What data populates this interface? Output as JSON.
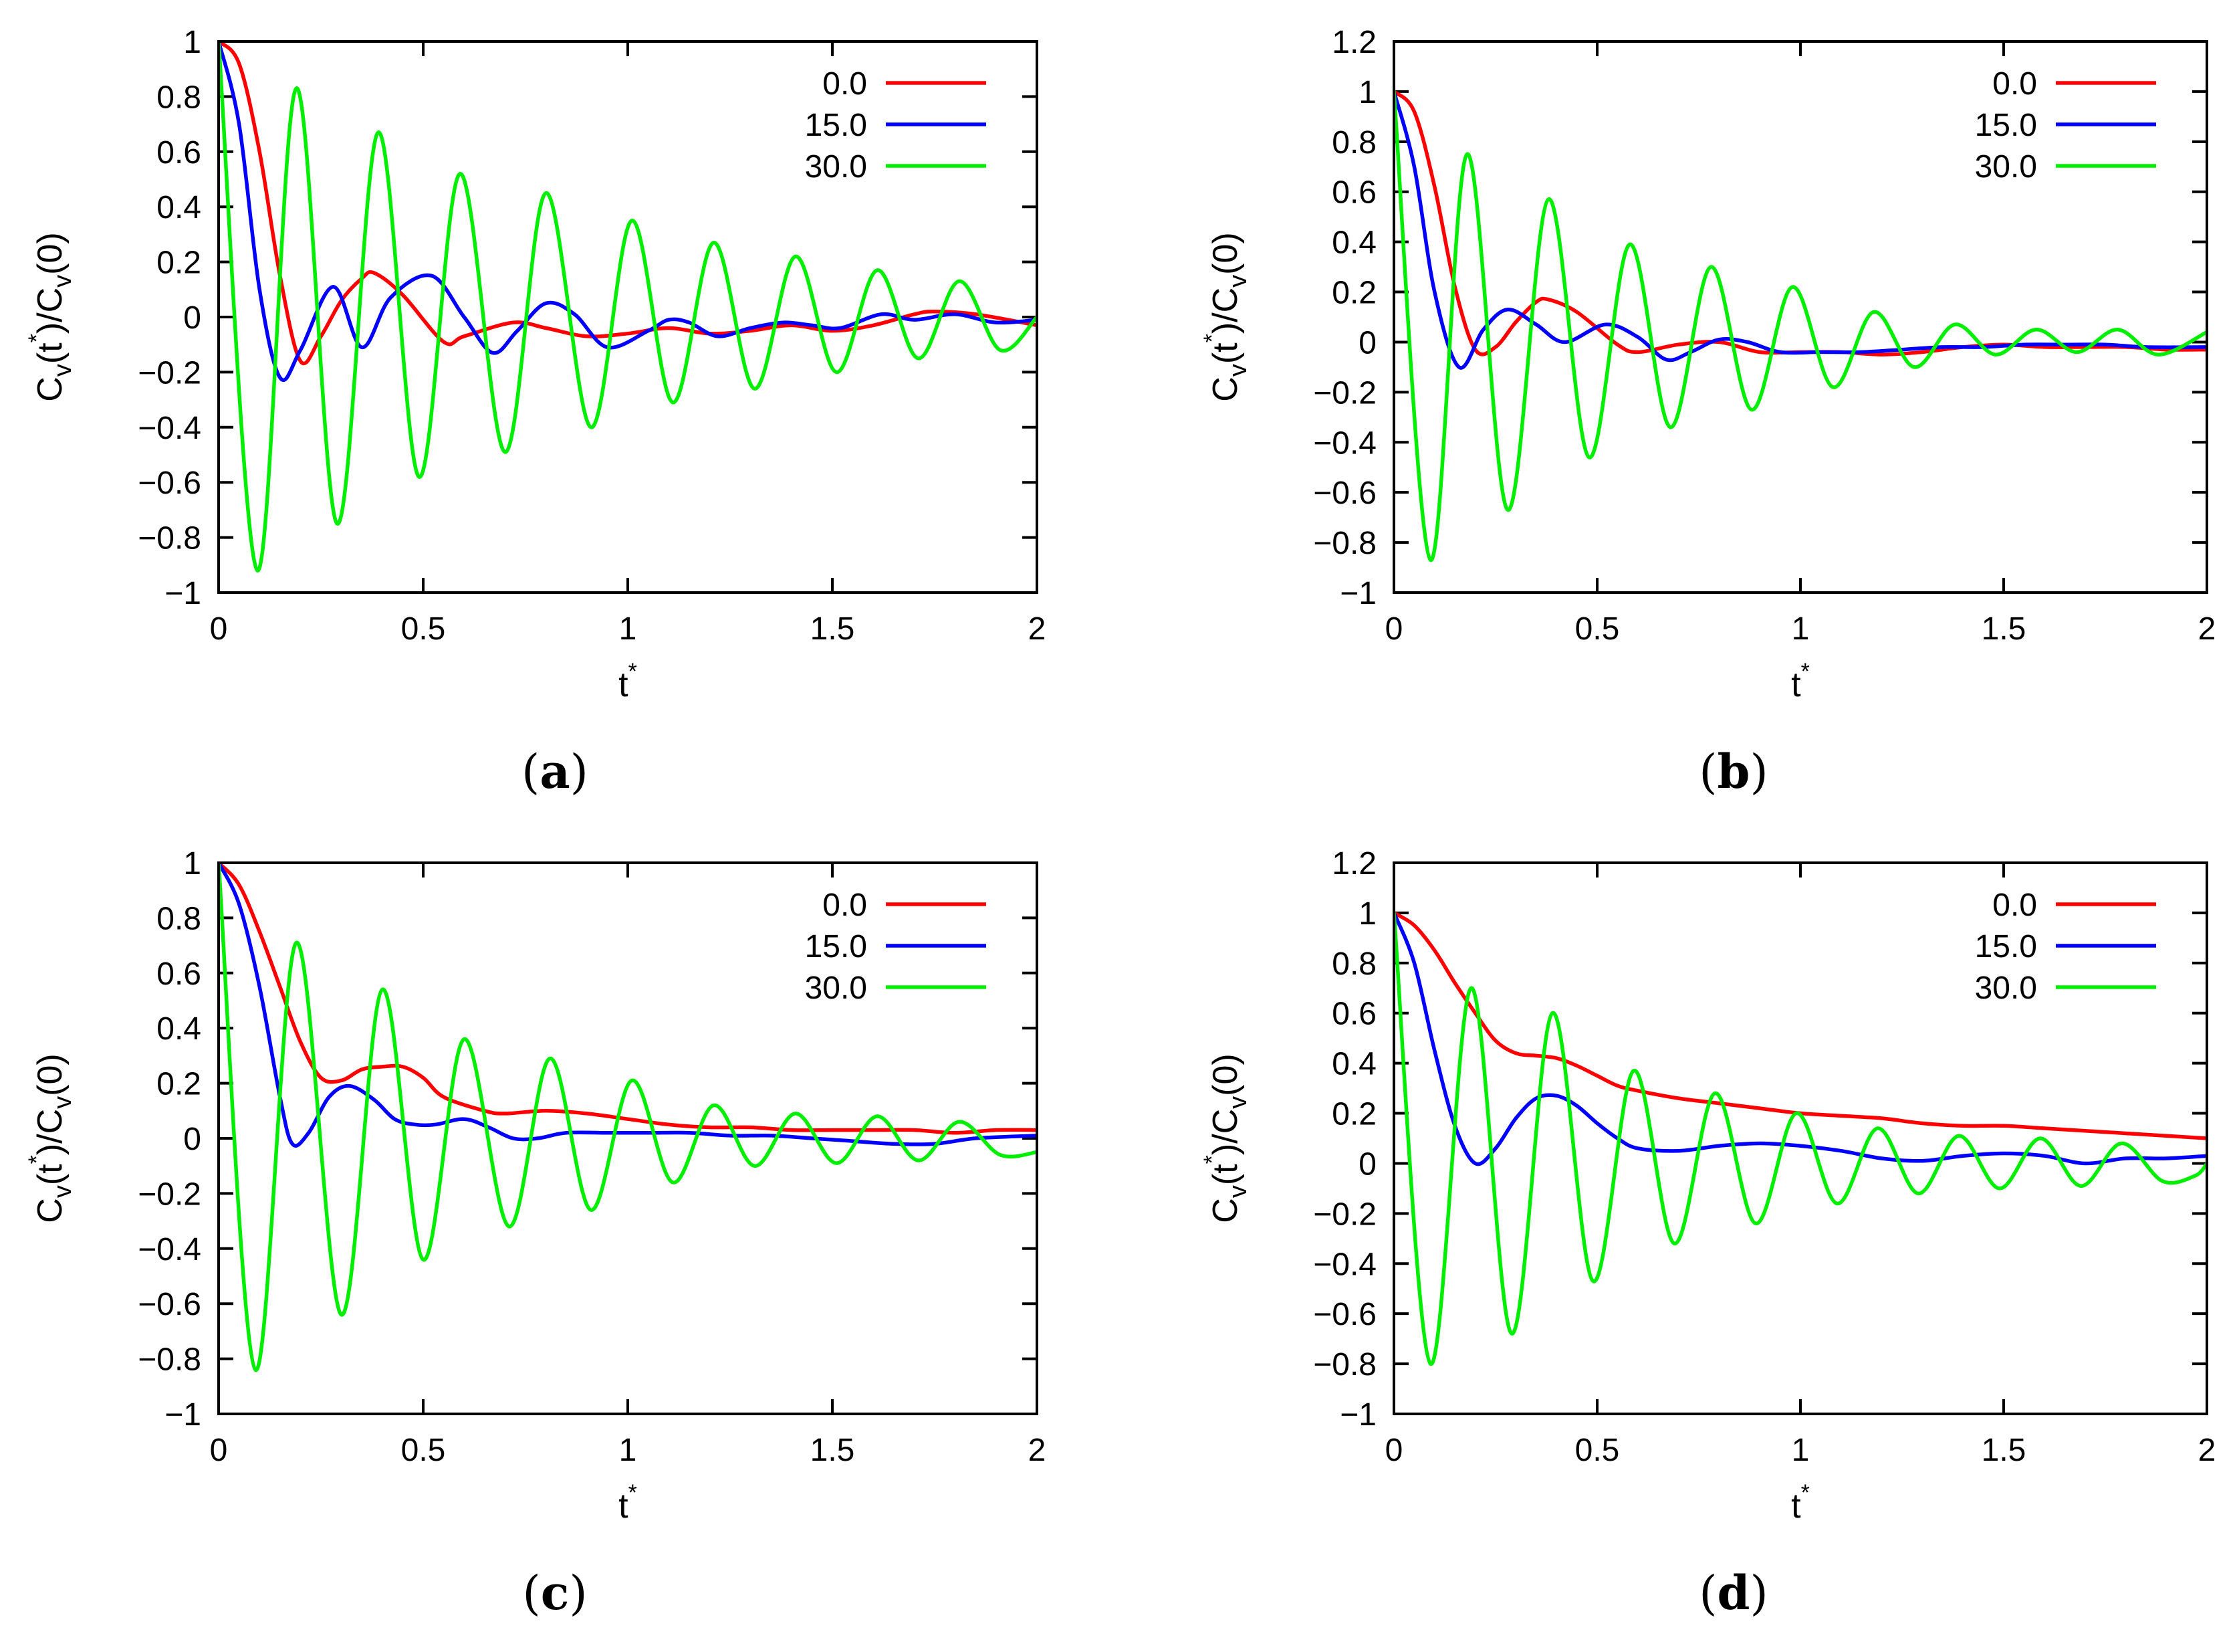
{
  "figure": {
    "captions": [
      "(a)",
      "(b)",
      "(c)",
      "(d)"
    ]
  },
  "chart_data": [
    {
      "id": "a",
      "type": "line",
      "caption": "(a)",
      "xlabel": "t*",
      "ylabel": "Cv(t*)/Cv(0)",
      "xlim": [
        0,
        2
      ],
      "ylim": [
        -1,
        1
      ],
      "xticks": [
        "0",
        "0.5",
        "1",
        "1.5",
        "2"
      ],
      "yticks": [
        "1",
        "0.8",
        "0.6",
        "0.4",
        "0.2",
        "0",
        "−0.2",
        "−0.4",
        "−0.6",
        "−0.8",
        "−1"
      ],
      "legend": "top-right",
      "series": [
        {
          "name": "0.0",
          "color": "#ff0000",
          "x": [
            0,
            0.05,
            0.1,
            0.15,
            0.2,
            0.25,
            0.3,
            0.35,
            0.38,
            0.45,
            0.55,
            0.6,
            0.72,
            0.8,
            0.9,
            1.0,
            1.1,
            1.2,
            1.3,
            1.4,
            1.5,
            1.6,
            1.7,
            1.75,
            1.85,
            2.0
          ],
          "values": [
            1,
            0.92,
            0.6,
            0.15,
            -0.16,
            -0.07,
            0.06,
            0.14,
            0.16,
            0.08,
            -0.09,
            -0.07,
            -0.02,
            -0.04,
            -0.07,
            -0.06,
            -0.04,
            -0.06,
            -0.05,
            -0.03,
            -0.05,
            -0.03,
            0.01,
            0.02,
            0.01,
            -0.03
          ]
        },
        {
          "name": "15.0",
          "color": "#0000ff",
          "x": [
            0,
            0.05,
            0.1,
            0.15,
            0.2,
            0.28,
            0.35,
            0.42,
            0.52,
            0.6,
            0.67,
            0.73,
            0.8,
            0.87,
            0.95,
            1.05,
            1.1,
            1.15,
            1.22,
            1.3,
            1.38,
            1.45,
            1.52,
            1.62,
            1.7,
            1.8,
            1.9,
            2.0
          ],
          "values": [
            1,
            0.7,
            0.1,
            -0.22,
            -0.12,
            0.11,
            -0.11,
            0.07,
            0.15,
            0.0,
            -0.13,
            -0.05,
            0.05,
            0.01,
            -0.11,
            -0.05,
            -0.01,
            -0.02,
            -0.07,
            -0.04,
            -0.02,
            -0.03,
            -0.04,
            0.01,
            -0.01,
            0.01,
            -0.02,
            -0.01
          ]
        },
        {
          "name": "30.0",
          "color": "#00ee00",
          "x": [
            0,
            0.095,
            0.19,
            0.29,
            0.39,
            0.49,
            0.59,
            0.7,
            0.8,
            0.91,
            1.01,
            1.11,
            1.21,
            1.31,
            1.41,
            1.51,
            1.61,
            1.71,
            1.81,
            1.91,
            2.0
          ],
          "values": [
            1,
            -0.92,
            0.83,
            -0.75,
            0.67,
            -0.58,
            0.52,
            -0.49,
            0.45,
            -0.4,
            0.35,
            -0.31,
            0.27,
            -0.26,
            0.22,
            -0.2,
            0.17,
            -0.15,
            0.13,
            -0.12,
            0.0
          ]
        }
      ]
    },
    {
      "id": "b",
      "type": "line",
      "caption": "(b)",
      "xlabel": "t*",
      "ylabel": "Cv(t*)/Cv(0)",
      "xlim": [
        0,
        2
      ],
      "ylim": [
        -1,
        1.2
      ],
      "xticks": [
        "0",
        "0.5",
        "1",
        "1.5",
        "2"
      ],
      "yticks": [
        "1.2",
        "1",
        "0.8",
        "0.6",
        "0.4",
        "0.2",
        "0",
        "−0.2",
        "−0.4",
        "−0.6",
        "−0.8",
        "−1"
      ],
      "legend": "top-right",
      "series": [
        {
          "name": "0.0",
          "color": "#ff0000",
          "x": [
            0,
            0.05,
            0.1,
            0.15,
            0.2,
            0.25,
            0.3,
            0.35,
            0.38,
            0.45,
            0.55,
            0.6,
            0.7,
            0.8,
            0.9,
            1.0,
            1.1,
            1.2,
            1.3,
            1.4,
            1.5,
            1.6,
            1.7,
            1.8,
            1.9,
            2.0
          ],
          "values": [
            1,
            0.92,
            0.62,
            0.22,
            -0.03,
            -0.02,
            0.08,
            0.16,
            0.17,
            0.12,
            -0.01,
            -0.04,
            -0.01,
            0.0,
            -0.04,
            -0.04,
            -0.04,
            -0.05,
            -0.04,
            -0.02,
            -0.01,
            -0.02,
            -0.02,
            -0.02,
            -0.03,
            -0.03
          ]
        },
        {
          "name": "15.0",
          "color": "#0000ff",
          "x": [
            0,
            0.05,
            0.1,
            0.16,
            0.22,
            0.28,
            0.35,
            0.42,
            0.52,
            0.6,
            0.67,
            0.73,
            0.8,
            0.87,
            0.95,
            1.05,
            1.15,
            1.25,
            1.35,
            1.45,
            1.55,
            1.65,
            1.75,
            1.85,
            2.0
          ],
          "values": [
            1,
            0.7,
            0.2,
            -0.1,
            0.05,
            0.13,
            0.07,
            0.0,
            0.07,
            0.02,
            -0.07,
            -0.04,
            0.01,
            0.0,
            -0.04,
            -0.04,
            -0.04,
            -0.03,
            -0.02,
            -0.02,
            -0.01,
            -0.01,
            -0.01,
            -0.02,
            -0.02
          ]
        },
        {
          "name": "30.0",
          "color": "#00ee00",
          "x": [
            0,
            0.09,
            0.18,
            0.28,
            0.38,
            0.48,
            0.58,
            0.68,
            0.78,
            0.88,
            0.98,
            1.08,
            1.18,
            1.28,
            1.38,
            1.48,
            1.58,
            1.68,
            1.78,
            1.88,
            2.0
          ],
          "values": [
            1,
            -0.87,
            0.75,
            -0.67,
            0.57,
            -0.46,
            0.39,
            -0.34,
            0.3,
            -0.27,
            0.22,
            -0.18,
            0.12,
            -0.1,
            0.07,
            -0.05,
            0.05,
            -0.04,
            0.05,
            -0.05,
            0.04
          ]
        }
      ]
    },
    {
      "id": "c",
      "type": "line",
      "caption": "(c)",
      "xlabel": "t*",
      "ylabel": "Cv(t*)/Cv(0)",
      "xlim": [
        0,
        2
      ],
      "ylim": [
        -1,
        1
      ],
      "xticks": [
        "0",
        "0.5",
        "1",
        "1.5",
        "2"
      ],
      "yticks": [
        "1",
        "0.8",
        "0.6",
        "0.4",
        "0.2",
        "0",
        "−0.2",
        "−0.4",
        "−0.6",
        "−0.8",
        "−1"
      ],
      "legend": "top-right",
      "series": [
        {
          "name": "0.0",
          "color": "#ff0000",
          "x": [
            0,
            0.05,
            0.1,
            0.15,
            0.2,
            0.25,
            0.3,
            0.35,
            0.4,
            0.45,
            0.5,
            0.55,
            0.65,
            0.7,
            0.8,
            0.9,
            1.0,
            1.1,
            1.2,
            1.3,
            1.4,
            1.5,
            1.6,
            1.7,
            1.8,
            1.9,
            2.0
          ],
          "values": [
            1,
            0.92,
            0.75,
            0.55,
            0.35,
            0.22,
            0.21,
            0.25,
            0.26,
            0.26,
            0.22,
            0.15,
            0.1,
            0.09,
            0.1,
            0.09,
            0.07,
            0.05,
            0.04,
            0.04,
            0.03,
            0.03,
            0.03,
            0.03,
            0.02,
            0.03,
            0.03
          ]
        },
        {
          "name": "15.0",
          "color": "#0000ff",
          "x": [
            0,
            0.05,
            0.1,
            0.15,
            0.18,
            0.22,
            0.27,
            0.32,
            0.38,
            0.43,
            0.48,
            0.53,
            0.6,
            0.66,
            0.72,
            0.78,
            0.85,
            0.95,
            1.05,
            1.15,
            1.25,
            1.35,
            1.45,
            1.55,
            1.65,
            1.75,
            1.85,
            2.0
          ],
          "values": [
            1,
            0.85,
            0.55,
            0.15,
            -0.02,
            0.02,
            0.15,
            0.19,
            0.14,
            0.07,
            0.05,
            0.05,
            0.07,
            0.04,
            0.0,
            0.0,
            0.02,
            0.02,
            0.02,
            0.02,
            0.01,
            0.01,
            0.0,
            -0.01,
            -0.02,
            -0.02,
            0.0,
            0.01
          ]
        },
        {
          "name": "30.0",
          "color": "#00ee00",
          "x": [
            0,
            0.09,
            0.19,
            0.3,
            0.4,
            0.5,
            0.6,
            0.71,
            0.81,
            0.91,
            1.01,
            1.11,
            1.21,
            1.31,
            1.41,
            1.51,
            1.61,
            1.71,
            1.81,
            1.91,
            2.0
          ],
          "values": [
            1,
            -0.84,
            0.71,
            -0.64,
            0.54,
            -0.44,
            0.36,
            -0.32,
            0.29,
            -0.26,
            0.21,
            -0.16,
            0.12,
            -0.1,
            0.09,
            -0.09,
            0.08,
            -0.08,
            0.06,
            -0.06,
            -0.05
          ]
        }
      ]
    },
    {
      "id": "d",
      "type": "line",
      "caption": "(d)",
      "xlabel": "t*",
      "ylabel": "Cv(t*)/Cv(0)",
      "xlim": [
        0,
        2
      ],
      "ylim": [
        -1,
        1.2
      ],
      "xticks": [
        "0",
        "0.5",
        "1",
        "1.5",
        "2"
      ],
      "yticks": [
        "1.2",
        "1",
        "0.8",
        "0.6",
        "0.4",
        "0.2",
        "0",
        "−0.2",
        "−0.4",
        "−0.6",
        "−0.8",
        "−1"
      ],
      "legend": "top-right",
      "series": [
        {
          "name": "0.0",
          "color": "#ff0000",
          "x": [
            0,
            0.05,
            0.1,
            0.15,
            0.2,
            0.25,
            0.3,
            0.35,
            0.4,
            0.45,
            0.5,
            0.55,
            0.6,
            0.7,
            0.8,
            0.9,
            1.0,
            1.1,
            1.2,
            1.3,
            1.4,
            1.5,
            1.6,
            1.7,
            1.8,
            1.9,
            2.0
          ],
          "values": [
            1,
            0.95,
            0.85,
            0.72,
            0.6,
            0.49,
            0.44,
            0.43,
            0.42,
            0.39,
            0.35,
            0.31,
            0.29,
            0.26,
            0.24,
            0.22,
            0.2,
            0.19,
            0.18,
            0.16,
            0.15,
            0.15,
            0.14,
            0.13,
            0.12,
            0.11,
            0.1
          ]
        },
        {
          "name": "15.0",
          "color": "#0000ff",
          "x": [
            0,
            0.05,
            0.1,
            0.15,
            0.2,
            0.25,
            0.3,
            0.35,
            0.4,
            0.45,
            0.5,
            0.55,
            0.6,
            0.7,
            0.8,
            0.9,
            1.0,
            1.1,
            1.2,
            1.3,
            1.4,
            1.5,
            1.6,
            1.7,
            1.8,
            1.9,
            2.0
          ],
          "values": [
            1,
            0.8,
            0.45,
            0.15,
            0.0,
            0.06,
            0.18,
            0.26,
            0.27,
            0.23,
            0.16,
            0.1,
            0.06,
            0.05,
            0.07,
            0.08,
            0.07,
            0.05,
            0.02,
            0.01,
            0.03,
            0.04,
            0.03,
            0.0,
            0.02,
            0.02,
            0.03
          ]
        },
        {
          "name": "30.0",
          "color": "#00ee00",
          "x": [
            0,
            0.09,
            0.19,
            0.29,
            0.39,
            0.49,
            0.59,
            0.69,
            0.79,
            0.89,
            0.99,
            1.09,
            1.19,
            1.29,
            1.39,
            1.49,
            1.59,
            1.69,
            1.79,
            1.89,
            1.97,
            2.0
          ],
          "values": [
            1,
            -0.8,
            0.7,
            -0.68,
            0.6,
            -0.47,
            0.37,
            -0.32,
            0.28,
            -0.24,
            0.2,
            -0.16,
            0.14,
            -0.12,
            0.11,
            -0.1,
            0.1,
            -0.09,
            0.08,
            -0.07,
            -0.05,
            0.0
          ]
        }
      ]
    }
  ]
}
